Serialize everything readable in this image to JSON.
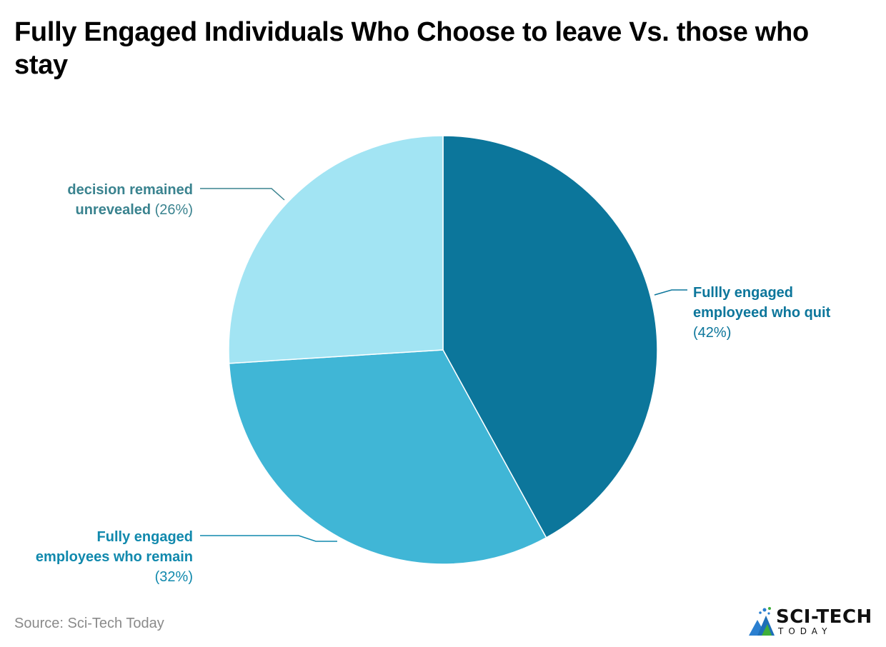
{
  "title": "Fully Engaged Individuals Who Choose to leave Vs. those who stay",
  "source": "Source: Sci-Tech Today",
  "logo": {
    "name": "SCI-TECH",
    "sub": "TODAY"
  },
  "chart_data": {
    "type": "pie",
    "title": "Fully Engaged Individuals Who Choose to leave Vs. those who stay",
    "slices": [
      {
        "label": "Fullly engaged employeed who quit",
        "value": 42,
        "value_text": "(42%)",
        "color": "#0c769b",
        "label_color": "#0c769b"
      },
      {
        "label": "Fully engaged employees who remain",
        "value": 32,
        "value_text": "(32%)",
        "color": "#40b6d6",
        "label_color": "#1189ad"
      },
      {
        "label": "decision remained unrevealed",
        "value": 26,
        "value_text": "(26%)",
        "color": "#a2e4f3",
        "label_color": "#3a838f"
      }
    ]
  }
}
